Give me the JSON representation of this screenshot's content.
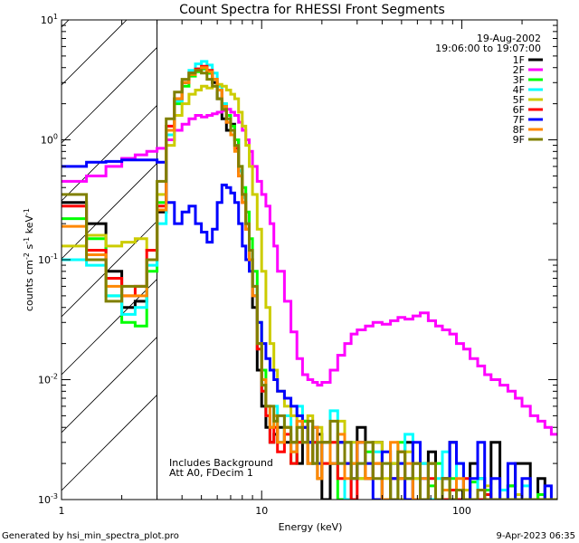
{
  "chart_data": {
    "type": "line",
    "title": "Count Spectra for RHESSI Front Segments",
    "xlabel": "Energy (keV)",
    "ylabel_parts": {
      "base": "counts cm",
      "exp1": "-2",
      "mid": " s",
      "exp2": "-1",
      "unit": " keV",
      "exp3": "-1"
    },
    "x_scale": "log",
    "y_scale": "log",
    "xlim": [
      1,
      300
    ],
    "ylim": [
      0.001,
      10
    ],
    "x_ticks": [
      {
        "value": 1,
        "label": "1"
      },
      {
        "value": 10,
        "label": "10"
      },
      {
        "value": 100,
        "label": "100"
      }
    ],
    "y_ticks": [
      {
        "value": 0.001,
        "base": "10",
        "exp": "-3"
      },
      {
        "value": 0.01,
        "base": "10",
        "exp": "-2"
      },
      {
        "value": 0.1,
        "base": "10",
        "exp": "-1"
      },
      {
        "value": 1,
        "base": "10",
        "exp": "0"
      },
      {
        "value": 10,
        "base": "10",
        "exp": "1"
      }
    ],
    "hatched_region": [
      1,
      3
    ],
    "date_label": "19-Aug-2002",
    "time_label": "19:06:00 to 19:07:00",
    "annotations": [
      "Includes Background",
      "Att A0, FDecim 1"
    ],
    "legend_position": "top-right",
    "bin_edges": [
      1.0,
      1.333,
      1.667,
      2.0,
      2.333,
      2.667,
      3.0,
      3.333,
      3.667,
      4.0,
      4.333,
      4.667,
      5.0,
      5.333,
      5.667,
      6.0,
      6.333,
      6.667,
      7.0,
      7.333,
      7.667,
      8.0,
      8.333,
      8.667,
      9.0,
      9.5,
      10.0,
      10.5,
      11.0,
      11.5,
      12.0,
      13.0,
      14.0,
      15.0,
      16.0,
      17.0,
      18.0,
      19.0,
      20.0,
      22.0,
      24.0,
      26.0,
      28.0,
      30.0,
      33.0,
      36.0,
      40.0,
      44.0,
      48.0,
      52.0,
      57.0,
      62.0,
      68.0,
      74.0,
      80.0,
      87.0,
      94.0,
      102.0,
      110.0,
      120.0,
      130.0,
      140.0,
      155.0,
      170.0,
      185.0,
      200.0,
      220.0,
      240.0,
      260.0,
      280.0,
      300.0
    ],
    "series": [
      {
        "name": "1F",
        "color": "#000000",
        "values": [
          0.3,
          0.2,
          0.08,
          0.04,
          0.045,
          0.1,
          0.25,
          1.2,
          2.2,
          3.0,
          3.6,
          3.9,
          4.0,
          3.6,
          3.0,
          2.2,
          1.5,
          1.2,
          1.35,
          1.0,
          0.55,
          0.35,
          0.2,
          0.1,
          0.04,
          0.012,
          0.006,
          0.004,
          0.003,
          0.0035,
          0.004,
          0.003,
          0.003,
          0.002,
          0.0045,
          0.003,
          0.002,
          0.0035,
          0.001,
          0.002,
          0.003,
          0.001,
          0.002,
          0.004,
          0.0015,
          0.003,
          0.001,
          0.002,
          0.0015,
          0.003,
          0.001,
          0.002,
          0.0025,
          0.001,
          0.0015,
          0.003,
          0.001,
          0.0012,
          0.002,
          0.0015,
          0.001,
          0.003,
          0.001,
          0.0013,
          0.002,
          0.002,
          0.001,
          0.0015,
          0.001,
          0.001
        ]
      },
      {
        "name": "2F",
        "color": "#ff00ff",
        "values": [
          0.45,
          0.5,
          0.6,
          0.7,
          0.75,
          0.8,
          0.85,
          1.0,
          1.2,
          1.35,
          1.5,
          1.6,
          1.55,
          1.6,
          1.65,
          1.7,
          1.75,
          1.8,
          1.7,
          1.6,
          1.4,
          1.2,
          1.0,
          0.8,
          0.6,
          0.45,
          0.35,
          0.28,
          0.2,
          0.13,
          0.08,
          0.045,
          0.025,
          0.015,
          0.011,
          0.01,
          0.0095,
          0.009,
          0.0095,
          0.012,
          0.016,
          0.02,
          0.024,
          0.026,
          0.028,
          0.03,
          0.029,
          0.031,
          0.033,
          0.032,
          0.034,
          0.036,
          0.031,
          0.028,
          0.026,
          0.024,
          0.02,
          0.018,
          0.015,
          0.013,
          0.011,
          0.01,
          0.009,
          0.008,
          0.007,
          0.006,
          0.005,
          0.0045,
          0.004,
          0.0035
        ]
      },
      {
        "name": "3F",
        "color": "#00ff00",
        "values": [
          0.22,
          0.15,
          0.05,
          0.03,
          0.028,
          0.08,
          0.3,
          1.2,
          2.0,
          2.8,
          3.4,
          3.7,
          3.9,
          3.6,
          3.2,
          2.6,
          2.0,
          1.6,
          1.3,
          1.0,
          0.6,
          0.4,
          0.25,
          0.15,
          0.08,
          0.03,
          0.012,
          0.006,
          0.004,
          0.005,
          0.003,
          0.004,
          0.002,
          0.003,
          0.0045,
          0.002,
          0.003,
          0.0015,
          0.003,
          0.002,
          0.001,
          0.003,
          0.002,
          0.0015,
          0.0025,
          0.002,
          0.001,
          0.002,
          0.003,
          0.0015,
          0.002,
          0.001,
          0.0013,
          0.002,
          0.001,
          0.0015,
          0.001,
          0.001,
          0.0014,
          0.001,
          0.0012,
          0.001,
          0.001,
          0.0013,
          0.001,
          0.001,
          0.001,
          0.0011,
          0.001,
          0.001
        ]
      },
      {
        "name": "4F",
        "color": "#00ffff",
        "values": [
          0.1,
          0.09,
          0.05,
          0.035,
          0.04,
          0.09,
          0.2,
          1.1,
          2.1,
          3.0,
          3.8,
          4.3,
          4.5,
          4.2,
          3.6,
          2.8,
          2.0,
          1.5,
          1.2,
          0.9,
          0.55,
          0.33,
          0.2,
          0.12,
          0.06,
          0.02,
          0.008,
          0.005,
          0.004,
          0.006,
          0.003,
          0.005,
          0.0025,
          0.006,
          0.003,
          0.002,
          0.004,
          0.002,
          0.003,
          0.0055,
          0.002,
          0.001,
          0.003,
          0.002,
          0.0015,
          0.0025,
          0.002,
          0.001,
          0.002,
          0.0035,
          0.0015,
          0.002,
          0.001,
          0.0015,
          0.0025,
          0.001,
          0.002,
          0.0012,
          0.001,
          0.0015,
          0.001,
          0.001,
          0.0012,
          0.001,
          0.001,
          0.0013,
          0.001,
          0.001,
          0.001,
          0.001
        ]
      },
      {
        "name": "5F",
        "color": "#cccc00",
        "values": [
          0.13,
          0.16,
          0.13,
          0.14,
          0.15,
          0.12,
          0.35,
          0.9,
          1.6,
          2.0,
          2.4,
          2.6,
          2.8,
          2.7,
          2.8,
          2.9,
          2.8,
          2.6,
          2.4,
          2.2,
          1.7,
          1.3,
          0.9,
          0.6,
          0.35,
          0.18,
          0.08,
          0.04,
          0.02,
          0.012,
          0.008,
          0.006,
          0.005,
          0.004,
          0.004,
          0.005,
          0.003,
          0.004,
          0.002,
          0.003,
          0.0045,
          0.002,
          0.003,
          0.0015,
          0.002,
          0.003,
          0.0015,
          0.002,
          0.001,
          0.0025,
          0.0015,
          0.001,
          0.002,
          0.001,
          0.0015,
          0.001,
          0.001,
          0.0012,
          0.001,
          0.001,
          0.0013,
          0.001,
          0.001,
          0.001,
          0.0011,
          0.001,
          0.001,
          0.001,
          0.001,
          0.001
        ]
      },
      {
        "name": "6F",
        "color": "#ff0000",
        "values": [
          0.28,
          0.12,
          0.07,
          0.05,
          0.06,
          0.12,
          0.28,
          1.3,
          2.2,
          3.0,
          3.6,
          3.9,
          4.1,
          3.8,
          3.2,
          2.6,
          1.9,
          1.4,
          1.1,
          0.85,
          0.5,
          0.3,
          0.18,
          0.1,
          0.05,
          0.018,
          0.008,
          0.005,
          0.003,
          0.004,
          0.0025,
          0.0035,
          0.002,
          0.003,
          0.004,
          0.002,
          0.003,
          0.0015,
          0.002,
          0.003,
          0.0015,
          0.002,
          0.001,
          0.003,
          0.0015,
          0.002,
          0.001,
          0.0015,
          0.0025,
          0.001,
          0.002,
          0.001,
          0.0015,
          0.001,
          0.001,
          0.0012,
          0.001,
          0.0015,
          0.001,
          0.001,
          0.0011,
          0.001,
          0.001,
          0.001,
          0.001,
          0.001,
          0.001,
          0.001,
          0.001,
          0.001
        ]
      },
      {
        "name": "7F",
        "color": "#0000ff",
        "values": [
          0.6,
          0.65,
          0.66,
          0.68,
          0.68,
          0.68,
          0.65,
          0.3,
          0.2,
          0.25,
          0.28,
          0.2,
          0.17,
          0.14,
          0.18,
          0.3,
          0.42,
          0.4,
          0.36,
          0.3,
          0.2,
          0.13,
          0.1,
          0.08,
          0.05,
          0.03,
          0.02,
          0.015,
          0.012,
          0.01,
          0.008,
          0.007,
          0.006,
          0.005,
          0.004,
          0.003,
          0.004,
          0.002,
          0.003,
          0.002,
          0.003,
          0.002,
          0.0015,
          0.003,
          0.002,
          0.001,
          0.0025,
          0.0015,
          0.002,
          0.001,
          0.003,
          0.0015,
          0.002,
          0.001,
          0.0015,
          0.003,
          0.002,
          0.001,
          0.0015,
          0.003,
          0.001,
          0.0015,
          0.001,
          0.002,
          0.001,
          0.0015,
          0.001,
          0.001,
          0.0013,
          0.001
        ]
      },
      {
        "name": "8F",
        "color": "#ff8800",
        "values": [
          0.19,
          0.11,
          0.06,
          0.05,
          0.05,
          0.1,
          0.26,
          1.2,
          2.2,
          3.0,
          3.5,
          3.8,
          4.0,
          3.7,
          3.2,
          2.6,
          1.9,
          1.4,
          1.1,
          0.8,
          0.5,
          0.3,
          0.18,
          0.1,
          0.05,
          0.02,
          0.01,
          0.006,
          0.004,
          0.005,
          0.003,
          0.004,
          0.0025,
          0.0045,
          0.003,
          0.002,
          0.004,
          0.0015,
          0.003,
          0.002,
          0.0035,
          0.0015,
          0.002,
          0.003,
          0.0015,
          0.002,
          0.001,
          0.003,
          0.0015,
          0.002,
          0.001,
          0.0015,
          0.002,
          0.001,
          0.0012,
          0.001,
          0.0015,
          0.001,
          0.001,
          0.0012,
          0.001,
          0.001,
          0.001,
          0.001,
          0.001,
          0.001,
          0.001,
          0.001,
          0.001,
          0.001
        ]
      },
      {
        "name": "9F",
        "color": "#808000",
        "values": [
          0.35,
          0.1,
          0.045,
          0.06,
          0.06,
          0.1,
          0.45,
          1.5,
          2.5,
          3.2,
          3.6,
          3.8,
          3.6,
          3.2,
          2.8,
          2.2,
          1.8,
          1.5,
          1.2,
          0.9,
          0.6,
          0.35,
          0.2,
          0.12,
          0.06,
          0.02,
          0.009,
          0.006,
          0.006,
          0.0045,
          0.005,
          0.004,
          0.003,
          0.004,
          0.003,
          0.0045,
          0.002,
          0.003,
          0.003,
          0.0045,
          0.002,
          0.003,
          0.0015,
          0.002,
          0.003,
          0.0015,
          0.002,
          0.001,
          0.0025,
          0.0015,
          0.002,
          0.001,
          0.002,
          0.001,
          0.0015,
          0.001,
          0.0012,
          0.001,
          0.001,
          0.0012,
          0.001,
          0.001,
          0.001,
          0.001,
          0.001,
          0.001,
          0.001,
          0.001,
          0.001,
          0.001
        ]
      }
    ]
  },
  "footer": {
    "generated_by": "Generated by hsi_min_spectra_plot.pro",
    "timestamp": "9-Apr-2023 06:35"
  }
}
